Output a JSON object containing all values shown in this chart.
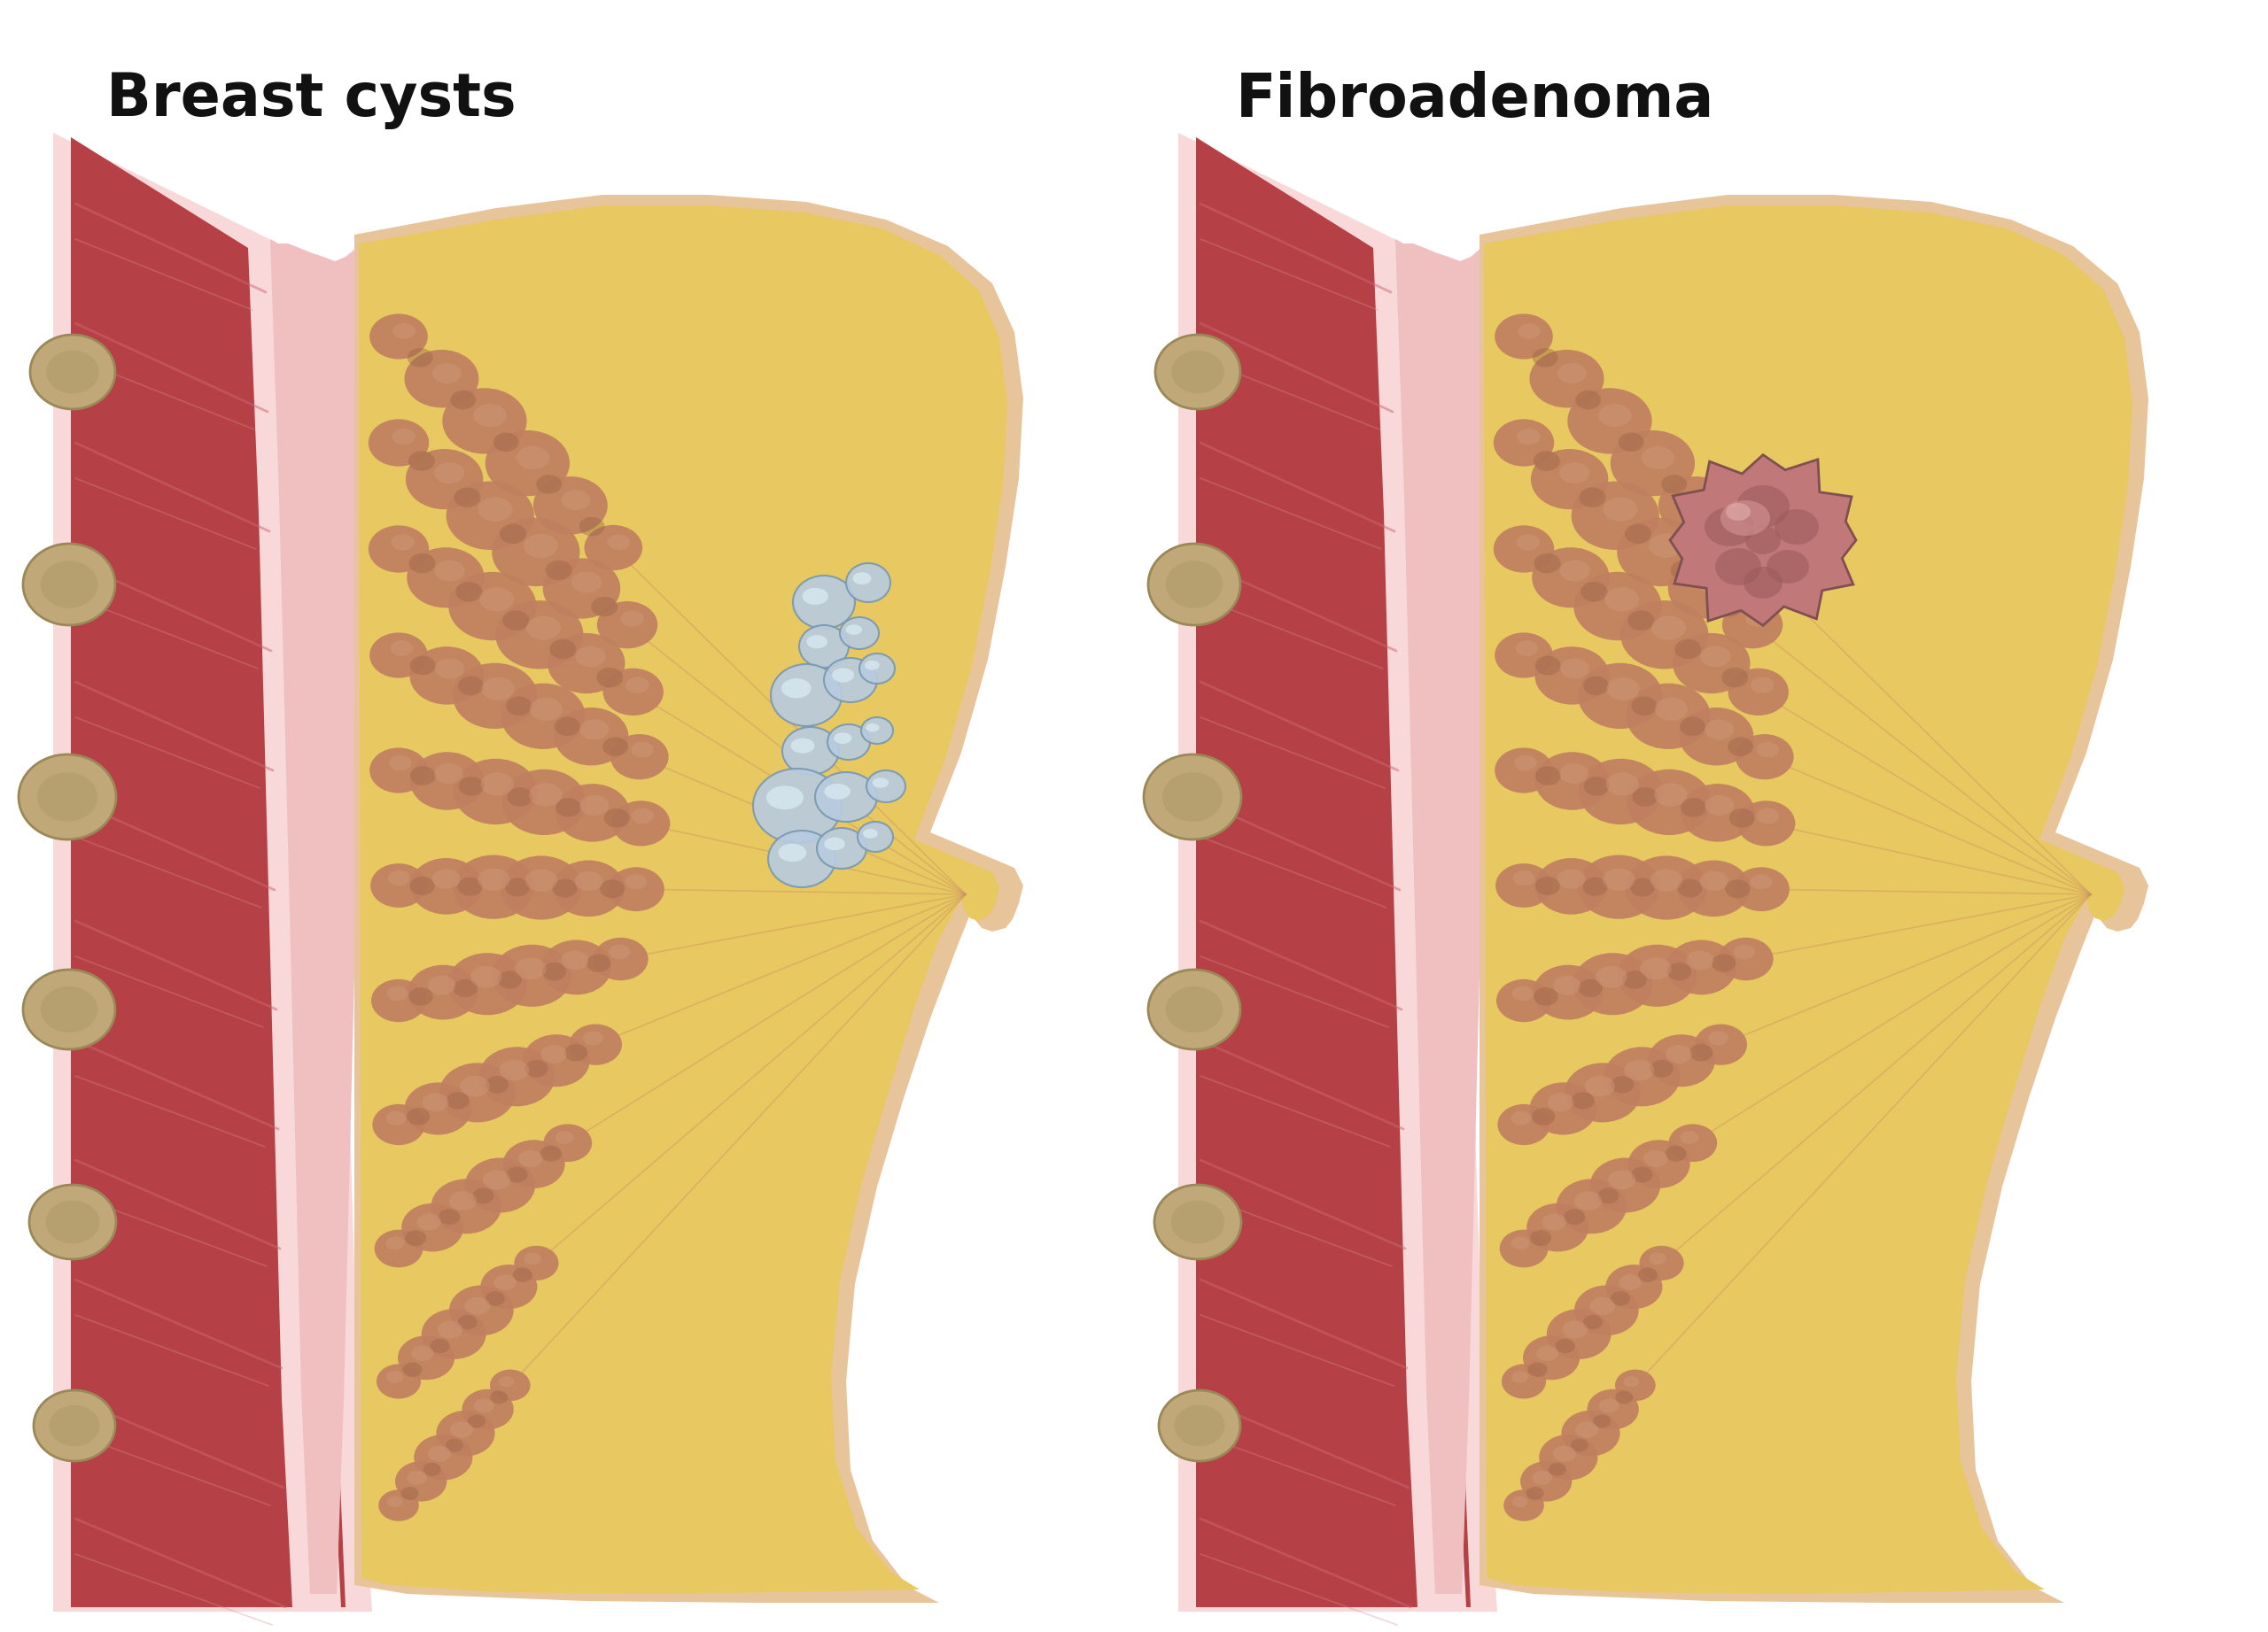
{
  "title_left": "Breast cysts",
  "title_right": "Fibroadenoma",
  "background_color": "#ffffff",
  "title_fontsize": 48,
  "title_color": "#111111",
  "skin_peach": "#E8C49A",
  "skin_peach_dark": "#D4A870",
  "fat_yellow": "#E8C860",
  "fat_yellow_mid": "#D4B448",
  "fat_yellow_dark": "#C8A030",
  "muscle_red": "#B54045",
  "muscle_dark_red": "#8B2830",
  "muscle_stripe": "#CC6870",
  "fascia_pink": "#F0C0C0",
  "fascia_pink2": "#F8D8D8",
  "lymph_tan": "#C0A878",
  "lymph_tan_dark": "#9A8858",
  "lobule_brown": "#C08060",
  "lobule_brown_dark": "#986040",
  "lobule_brown_light": "#D09878",
  "cyst_blue": "#B8CCE0",
  "cyst_blue_light": "#D8E8F0",
  "cyst_blue_dark": "#8AACCC",
  "cyst_outline": "#7898B0",
  "tumor_pink": "#C07878",
  "tumor_dark": "#985858",
  "tumor_light": "#D89898",
  "tumor_outline": "#805050",
  "duct_line": "#C89060"
}
